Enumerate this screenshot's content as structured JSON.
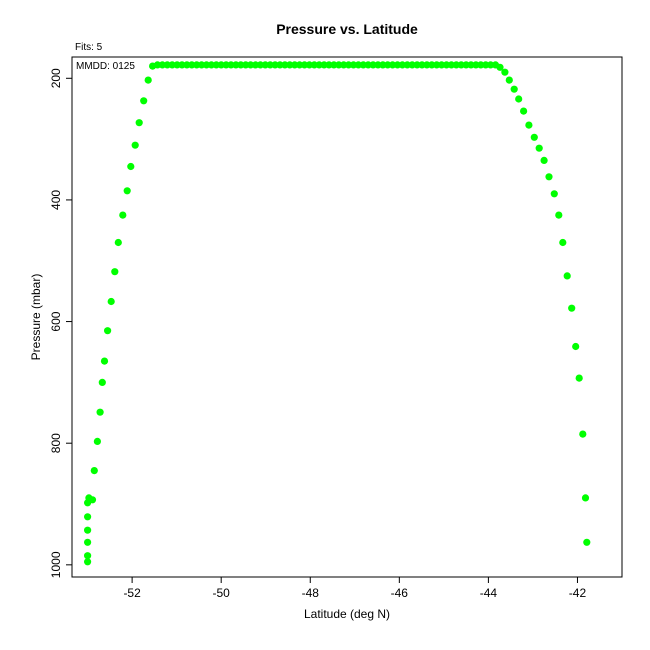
{
  "chart_data": {
    "type": "scatter",
    "title": "Pressure vs. Latitude",
    "xlabel": "Latitude (deg N)",
    "ylabel": "Pressure (mbar)",
    "xlim": [
      -53.35,
      -41.0
    ],
    "ylim": [
      1020,
      165
    ],
    "y_inverted": true,
    "grid": false,
    "legend": "none",
    "point_color": "#00ff00",
    "x_ticks": [
      -52,
      -50,
      -48,
      -46,
      -44,
      -42
    ],
    "y_ticks": [
      200,
      400,
      600,
      800,
      1000
    ],
    "x_tick_labels": [
      "-52",
      "-50",
      "-48",
      "-46",
      "-44",
      "-42"
    ],
    "y_tick_labels": [
      "200",
      "400",
      "600",
      "800",
      "1000"
    ],
    "annotations": {
      "fits": "Fits: 5",
      "mmdd": "MMDD: 0125"
    },
    "series": [
      {
        "points": [
          [
            -53.0,
            995
          ],
          [
            -53.0,
            985
          ],
          [
            -53.0,
            963
          ],
          [
            -53.0,
            943
          ],
          [
            -53.0,
            921
          ],
          [
            -53.0,
            898
          ],
          [
            -52.97,
            890
          ],
          [
            -52.89,
            893
          ],
          [
            -52.85,
            845
          ],
          [
            -52.78,
            797
          ],
          [
            -52.72,
            749
          ],
          [
            -52.67,
            700
          ],
          [
            -52.62,
            665
          ],
          [
            -52.55,
            615
          ],
          [
            -52.47,
            567
          ],
          [
            -52.39,
            518
          ],
          [
            -52.31,
            470
          ],
          [
            -52.21,
            425
          ],
          [
            -52.11,
            385
          ],
          [
            -52.03,
            345
          ],
          [
            -51.93,
            310
          ],
          [
            -51.84,
            273
          ],
          [
            -51.74,
            237
          ],
          [
            -51.64,
            203
          ],
          [
            -51.54,
            180
          ],
          [
            -51.43,
            178
          ],
          [
            -51.32,
            178
          ],
          [
            -51.21,
            178
          ],
          [
            -51.1,
            178
          ],
          [
            -50.99,
            178
          ],
          [
            -50.88,
            178
          ],
          [
            -50.77,
            178
          ],
          [
            -50.66,
            178
          ],
          [
            -50.55,
            178
          ],
          [
            -50.44,
            178
          ],
          [
            -50.33,
            178
          ],
          [
            -50.22,
            178
          ],
          [
            -50.11,
            178
          ],
          [
            -50.0,
            178
          ],
          [
            -49.89,
            178
          ],
          [
            -49.78,
            178
          ],
          [
            -49.67,
            178
          ],
          [
            -49.56,
            178
          ],
          [
            -49.45,
            178
          ],
          [
            -49.34,
            178
          ],
          [
            -49.23,
            178
          ],
          [
            -49.12,
            178
          ],
          [
            -49.01,
            178
          ],
          [
            -48.9,
            178
          ],
          [
            -48.79,
            178
          ],
          [
            -48.68,
            178
          ],
          [
            -48.57,
            178
          ],
          [
            -48.46,
            178
          ],
          [
            -48.35,
            178
          ],
          [
            -48.24,
            178
          ],
          [
            -48.13,
            178
          ],
          [
            -48.02,
            178
          ],
          [
            -47.91,
            178
          ],
          [
            -47.8,
            178
          ],
          [
            -47.69,
            178
          ],
          [
            -47.58,
            178
          ],
          [
            -47.47,
            178
          ],
          [
            -47.36,
            178
          ],
          [
            -47.25,
            178
          ],
          [
            -47.14,
            178
          ],
          [
            -47.03,
            178
          ],
          [
            -46.92,
            178
          ],
          [
            -46.81,
            178
          ],
          [
            -46.7,
            178
          ],
          [
            -46.59,
            178
          ],
          [
            -46.48,
            178
          ],
          [
            -46.37,
            178
          ],
          [
            -46.26,
            178
          ],
          [
            -46.15,
            178
          ],
          [
            -46.04,
            178
          ],
          [
            -45.93,
            178
          ],
          [
            -45.82,
            178
          ],
          [
            -45.71,
            178
          ],
          [
            -45.6,
            178
          ],
          [
            -45.49,
            178
          ],
          [
            -45.38,
            178
          ],
          [
            -45.27,
            178
          ],
          [
            -45.16,
            178
          ],
          [
            -45.05,
            178
          ],
          [
            -44.94,
            178
          ],
          [
            -44.83,
            178
          ],
          [
            -44.72,
            178
          ],
          [
            -44.61,
            178
          ],
          [
            -44.5,
            178
          ],
          [
            -44.39,
            178
          ],
          [
            -44.28,
            178
          ],
          [
            -44.17,
            178
          ],
          [
            -44.06,
            178
          ],
          [
            -43.95,
            178
          ],
          [
            -43.84,
            178
          ],
          [
            -43.74,
            182
          ],
          [
            -43.63,
            190
          ],
          [
            -43.53,
            203
          ],
          [
            -43.42,
            218
          ],
          [
            -43.32,
            234
          ],
          [
            -43.21,
            254
          ],
          [
            -43.09,
            277
          ],
          [
            -42.97,
            297
          ],
          [
            -42.86,
            315
          ],
          [
            -42.75,
            335
          ],
          [
            -42.64,
            362
          ],
          [
            -42.52,
            390
          ],
          [
            -42.42,
            425
          ],
          [
            -42.33,
            470
          ],
          [
            -42.23,
            525
          ],
          [
            -42.13,
            578
          ],
          [
            -42.04,
            641
          ],
          [
            -41.96,
            693
          ],
          [
            -41.88,
            785
          ],
          [
            -41.82,
            890
          ],
          [
            -41.79,
            963
          ]
        ]
      }
    ]
  }
}
